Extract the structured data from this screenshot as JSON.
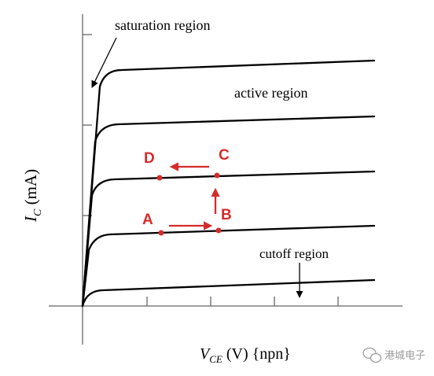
{
  "labels": {
    "saturation": "saturation region",
    "active": "active region",
    "cutoff": "cutoff region",
    "y_axis_main": "I",
    "y_axis_sub": "C",
    "y_axis_unit": " (mA)",
    "x_axis_main": "V",
    "x_axis_sub": "CE",
    "x_axis_unit": " (V) {npn}"
  },
  "points": {
    "a": "A",
    "b": "B",
    "c": "C",
    "d": "D"
  },
  "watermark": {
    "text": "港城电子",
    "icon": "wechat-logo-icon"
  },
  "colors": {
    "curve": "#000000",
    "axis": "#555555",
    "annotation": "#d42c2c"
  }
}
